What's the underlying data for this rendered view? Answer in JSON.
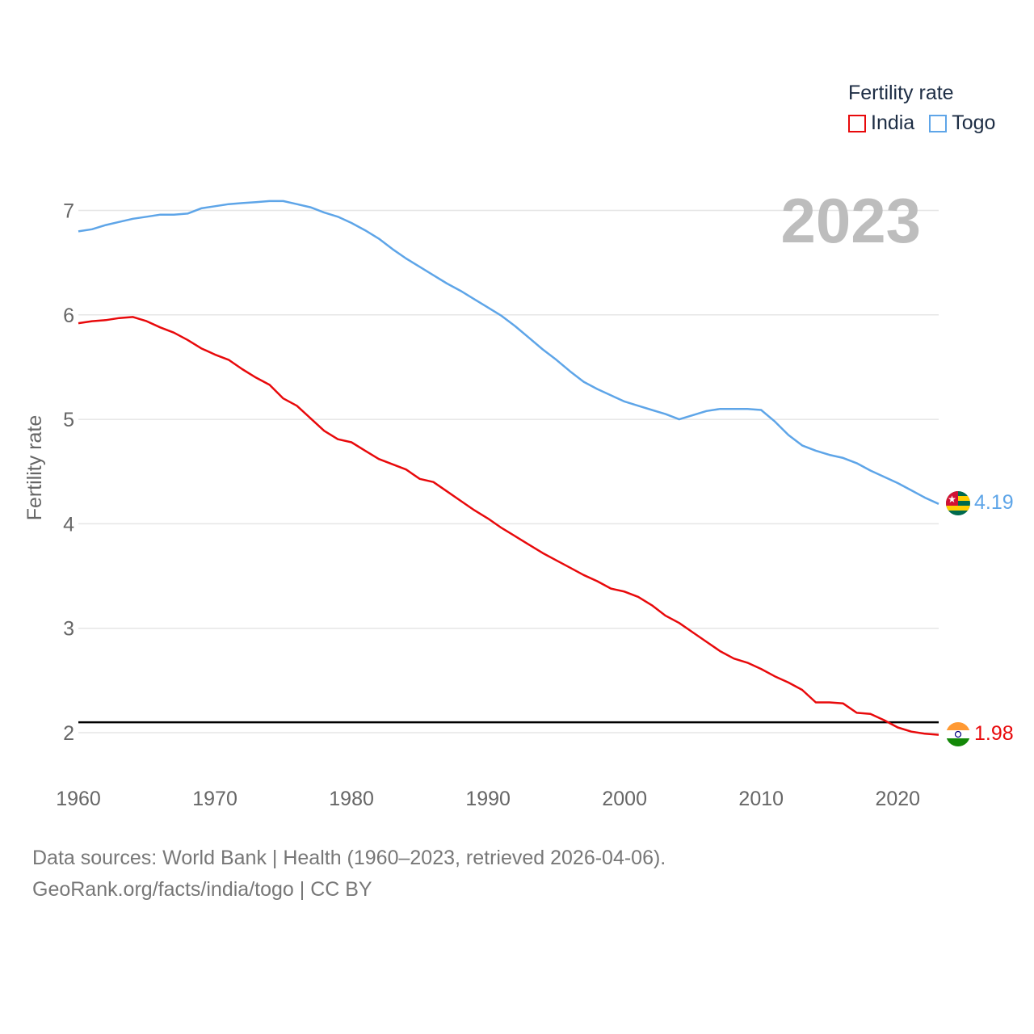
{
  "chart_data": {
    "type": "line",
    "title": "",
    "watermark_year": "2023",
    "ylabel": "Fertility rate",
    "xlabel": "",
    "xlim": [
      1960,
      2023
    ],
    "ylim": [
      1.6,
      7.3
    ],
    "xticks": [
      1960,
      1970,
      1980,
      1990,
      2000,
      2010,
      2020
    ],
    "yticks": [
      2,
      3,
      4,
      5,
      6,
      7
    ],
    "reference_line": 2.1,
    "legend": {
      "title": "Fertility rate",
      "position": "top-right"
    },
    "x": [
      1960,
      1961,
      1962,
      1963,
      1964,
      1965,
      1966,
      1967,
      1968,
      1969,
      1970,
      1971,
      1972,
      1973,
      1974,
      1975,
      1976,
      1977,
      1978,
      1979,
      1980,
      1981,
      1982,
      1983,
      1984,
      1985,
      1986,
      1987,
      1988,
      1989,
      1990,
      1991,
      1992,
      1993,
      1994,
      1995,
      1996,
      1997,
      1998,
      1999,
      2000,
      2001,
      2002,
      2003,
      2004,
      2005,
      2006,
      2007,
      2008,
      2009,
      2010,
      2011,
      2012,
      2013,
      2014,
      2015,
      2016,
      2017,
      2018,
      2019,
      2020,
      2021,
      2022,
      2023
    ],
    "series": [
      {
        "name": "India",
        "color": "#e8090b",
        "end_label": "1.98",
        "values": [
          5.92,
          5.94,
          5.95,
          5.97,
          5.98,
          5.94,
          5.88,
          5.83,
          5.76,
          5.68,
          5.62,
          5.57,
          5.48,
          5.4,
          5.33,
          5.2,
          5.13,
          5.01,
          4.89,
          4.81,
          4.78,
          4.7,
          4.62,
          4.57,
          4.52,
          4.43,
          4.4,
          4.31,
          4.22,
          4.13,
          4.05,
          3.96,
          3.88,
          3.8,
          3.72,
          3.65,
          3.58,
          3.51,
          3.45,
          3.38,
          3.35,
          3.3,
          3.22,
          3.12,
          3.05,
          2.96,
          2.87,
          2.78,
          2.71,
          2.67,
          2.61,
          2.54,
          2.48,
          2.41,
          2.29,
          2.29,
          2.28,
          2.19,
          2.18,
          2.12,
          2.05,
          2.01,
          1.99,
          1.98
        ]
      },
      {
        "name": "Togo",
        "color": "#5ea5e8",
        "end_label": "4.19",
        "values": [
          6.8,
          6.82,
          6.86,
          6.89,
          6.92,
          6.94,
          6.96,
          6.96,
          6.97,
          7.02,
          7.04,
          7.06,
          7.07,
          7.08,
          7.09,
          7.09,
          7.06,
          7.03,
          6.98,
          6.94,
          6.88,
          6.81,
          6.73,
          6.63,
          6.54,
          6.46,
          6.38,
          6.3,
          6.23,
          6.15,
          6.07,
          5.99,
          5.89,
          5.78,
          5.67,
          5.57,
          5.46,
          5.36,
          5.29,
          5.23,
          5.17,
          5.13,
          5.09,
          5.05,
          5.0,
          5.04,
          5.08,
          5.1,
          5.1,
          5.1,
          5.09,
          4.98,
          4.85,
          4.75,
          4.7,
          4.66,
          4.63,
          4.58,
          4.51,
          4.45,
          4.39,
          4.32,
          4.25,
          4.19
        ]
      }
    ]
  },
  "footer": {
    "line1": "Data sources: World Bank | Health (1960–2023, retrieved 2026-04-06).",
    "line2": "GeoRank.org/facts/india/togo | CC BY"
  }
}
